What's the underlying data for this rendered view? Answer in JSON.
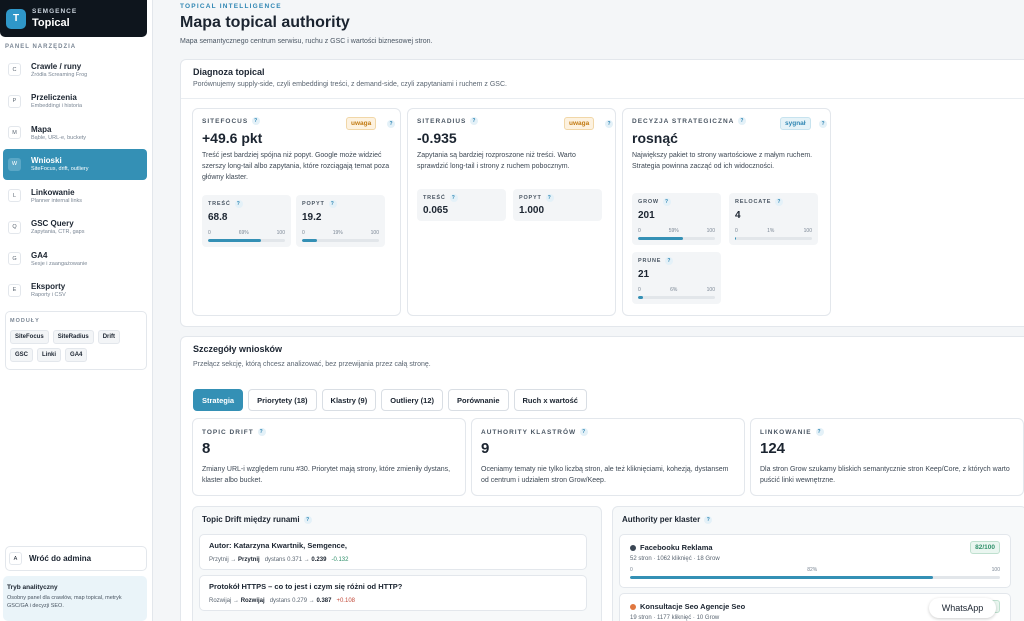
{
  "brand": {
    "sub": "SEMGENCE",
    "title": "Topical",
    "logo": "T"
  },
  "sidebar": {
    "panel_label": "PANEL NARZĘDZIA",
    "items": [
      {
        "key": "C",
        "label": "Crawle / runy",
        "desc": "Źródła Screaming Frog"
      },
      {
        "key": "P",
        "label": "Przeliczenia",
        "desc": "Embeddingi i historia"
      },
      {
        "key": "M",
        "label": "Mapa",
        "desc": "Bąble, URL-e, buckety"
      },
      {
        "key": "W",
        "label": "Wnioski",
        "desc": "SiteFocus, drift, outliery"
      },
      {
        "key": "L",
        "label": "Linkowanie",
        "desc": "Planner internal links"
      },
      {
        "key": "Q",
        "label": "GSC Query",
        "desc": "Zapytania, CTR, gaps"
      },
      {
        "key": "G",
        "label": "GA4",
        "desc": "Sesje i zaangażowanie"
      },
      {
        "key": "E",
        "label": "Eksporty",
        "desc": "Raporty i CSV"
      }
    ],
    "modules_label": "MODUŁY",
    "modules": [
      "SiteFocus",
      "SiteRadius",
      "Drift",
      "GSC",
      "Linki",
      "GA4"
    ],
    "back": {
      "key": "A",
      "label": "Wróć do admina"
    },
    "mode": {
      "title": "Tryb analityczny",
      "desc": "Osobny panel dla crawlów, map topical, metryk GSC/GA i decyzji SEO."
    }
  },
  "header": {
    "kicker": "TOPICAL INTELLIGENCE",
    "title": "Mapa topical authority",
    "subtitle": "Mapa semantycznego centrum serwisu, ruchu z GSC i wartości biznesowej stron."
  },
  "diagnosis": {
    "title": "Diagnoza topical",
    "subtitle": "Porównujemy supply-side, czyli embeddingi treści, z demand-side, czyli zapytaniami i ruchem z GSC.",
    "sitefocus": {
      "label": "SITEFOCUS",
      "badge": "uwaga",
      "value": "+49.6 pkt",
      "desc": "Treść jest bardziej spójna niż popyt. Google może widzieć szerszy long-tail albo zapytania, które rozciągają temat poza główny klaster.",
      "subs": [
        {
          "label": "TREŚĆ",
          "value": "68.8",
          "min": "0",
          "mid": "69%",
          "max": "100",
          "pct": 69
        },
        {
          "label": "POPYT",
          "value": "19.2",
          "min": "0",
          "mid": "19%",
          "max": "100",
          "pct": 19
        }
      ]
    },
    "siteradius": {
      "label": "SITERADIUS",
      "badge": "uwaga",
      "value": "-0.935",
      "desc": "Zapytania są bardziej rozproszone niż treści. Warto sprawdzić long-tail i strony z ruchem pobocznym.",
      "subs": [
        {
          "label": "TREŚĆ",
          "value": "0.065"
        },
        {
          "label": "POPYT",
          "value": "1.000"
        }
      ]
    },
    "decision": {
      "label": "DECYZJA STRATEGICZNA",
      "badge": "sygnał",
      "value": "rosnąć",
      "desc": "Największy pakiet to strony wartościowe z małym ruchem. Strategia powinna zacząć od ich widoczności.",
      "subs": [
        {
          "label": "GROW",
          "value": "201",
          "min": "0",
          "mid": "59%",
          "max": "100",
          "pct": 59
        },
        {
          "label": "RELOCATE",
          "value": "4",
          "min": "0",
          "mid": "1%",
          "max": "100",
          "pct": 1
        },
        {
          "label": "PRUNE",
          "value": "21",
          "min": "0",
          "mid": "6%",
          "max": "100",
          "pct": 6
        }
      ]
    }
  },
  "details": {
    "title": "Szczegóły wniosków",
    "subtitle": "Przełącz sekcję, którą chcesz analizować, bez przewijania przez całą stronę.",
    "tabs": [
      "Strategia",
      "Priorytety (18)",
      "Klastry (9)",
      "Outliery (12)",
      "Porównanie",
      "Ruch x wartość"
    ],
    "cards": [
      {
        "label": "TOPIC DRIFT",
        "value": "8",
        "desc": "Zmiany URL-i względem runu #30. Priorytet mają strony, które zmieniły dystans, klaster albo bucket."
      },
      {
        "label": "AUTHORITY KLASTRÓW",
        "value": "9",
        "desc": "Oceniamy tematy nie tylko liczbą stron, ale też kliknięciami, kohezją, dystansem od centrum i udziałem stron Grow/Keep."
      },
      {
        "label": "LINKOWANIE",
        "value": "124",
        "desc": "Dla stron Grow szukamy bliskich semantycznie stron Keep/Core, z których warto puścić linki wewnętrzne."
      }
    ],
    "drift": {
      "title": "Topic Drift między runami",
      "rows": [
        {
          "title": "Autor: Katarzyna Kwartnik, Semgence,",
          "from": "Przyt­nij",
          "to": "Przytnij",
          "dist_label": "dystans",
          "d_from": "0.371",
          "d_to": "0.239",
          "delta": "-0.132"
        },
        {
          "title": "Protokół HTTPS – co to jest i czym się różni od HTTP?",
          "from": "Rozwijaj",
          "to": "Rozwijaj",
          "dist_label": "dystans",
          "d_from": "0.279",
          "d_to": "0.387",
          "delta": "+0.108"
        }
      ]
    },
    "authority": {
      "title": "Authority per klaster",
      "rows": [
        {
          "title": "Facebooku Reklama",
          "meta": "52 stron · 1062 kliknięć · 18 Grow",
          "score": "82/100",
          "min": "0",
          "mid": "82%",
          "max": "100",
          "pct": 82,
          "dot": "#3a4654"
        },
        {
          "title": "Konsultacje Seo Agencje Seo",
          "meta": "19 stron · 1177 kliknięć · 10 Grow",
          "score": "60",
          "dot": "#e0773f"
        }
      ]
    }
  },
  "whatsapp": "WhatsApp"
}
